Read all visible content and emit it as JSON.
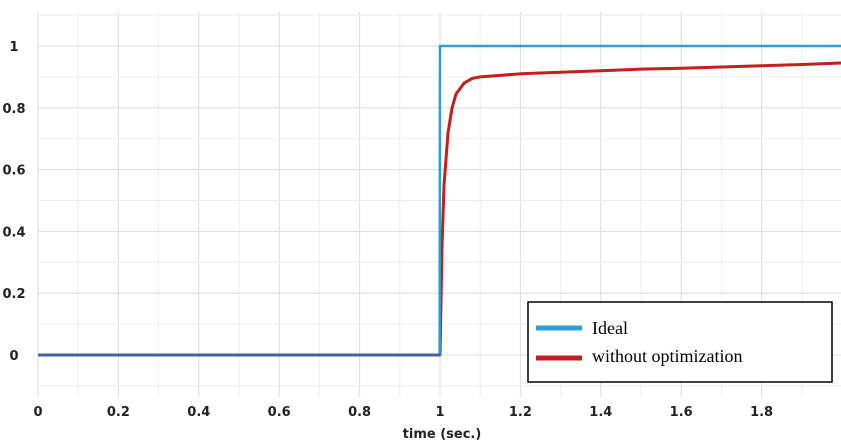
{
  "chart_data": {
    "type": "line",
    "title": "",
    "xlabel": "time (sec.)",
    "ylabel": "",
    "xlim": [
      0,
      2
    ],
    "ylim": [
      -0.13,
      1.1
    ],
    "grid": true,
    "legend_position": "bottom-right",
    "x_ticks": [
      0,
      0.2,
      0.4,
      0.6,
      0.8,
      1,
      1.2,
      1.4,
      1.6,
      1.8
    ],
    "x_tick_labels": [
      "0",
      "0.2",
      "0.4",
      "0.6",
      "0.8",
      "1",
      "1.2",
      "1.4",
      "1.6",
      "1.8"
    ],
    "y_ticks": [
      0,
      0.2,
      0.4,
      0.6,
      0.8,
      1
    ],
    "y_tick_labels": [
      "0",
      "0.2",
      "0.4",
      "0.6",
      "0.8",
      "1"
    ],
    "series": [
      {
        "name": "Ideal",
        "color": "#2b9fd3",
        "x": [
          0,
          0.999,
          1.0,
          2.0
        ],
        "y": [
          0,
          0,
          1,
          1
        ]
      },
      {
        "name": "without optimization",
        "color": "#c41e1e",
        "x": [
          0,
          1.0,
          1.005,
          1.01,
          1.02,
          1.03,
          1.04,
          1.06,
          1.08,
          1.1,
          1.15,
          1.2,
          1.3,
          1.4,
          1.5,
          1.6,
          1.7,
          1.8,
          1.9,
          2.0
        ],
        "y": [
          0,
          0,
          0.35,
          0.55,
          0.72,
          0.8,
          0.845,
          0.88,
          0.895,
          0.9,
          0.905,
          0.91,
          0.915,
          0.92,
          0.925,
          0.928,
          0.932,
          0.936,
          0.94,
          0.945
        ]
      }
    ]
  }
}
